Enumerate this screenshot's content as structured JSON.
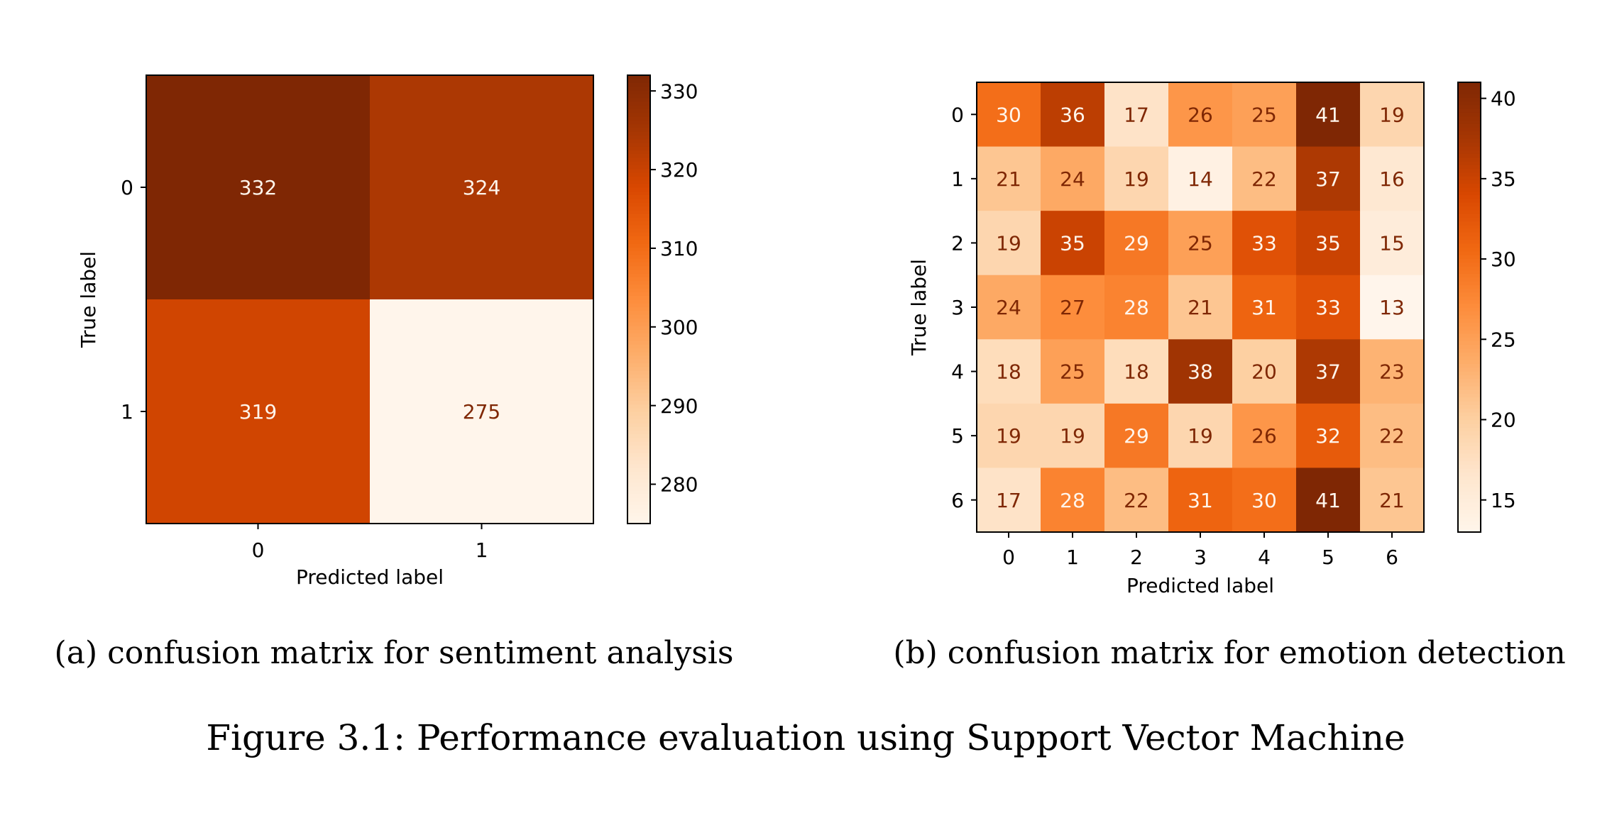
{
  "figure_caption": "Figure 3.1: Performance evaluation using Support Vector Machine",
  "subcaptions": {
    "a": "(a) confusion matrix for sentiment analysis",
    "b": "(b) confusion matrix for emotion detection"
  },
  "colormap": {
    "name": "Oranges",
    "stops": [
      "#fff5eb",
      "#fee6ce",
      "#fdd0a2",
      "#fdae6b",
      "#fd8d3c",
      "#f16913",
      "#d94801",
      "#a63603",
      "#7f2704"
    ]
  },
  "chart_data": [
    {
      "type": "heatmap",
      "title": "",
      "xlabel": "Predicted label",
      "ylabel": "True label",
      "x_categories": [
        "0",
        "1"
      ],
      "y_categories": [
        "0",
        "1"
      ],
      "values": [
        [
          332,
          324
        ],
        [
          319,
          275
        ]
      ],
      "color_range": [
        275,
        332
      ],
      "colorbar_ticks": [
        280,
        290,
        300,
        310,
        320,
        330
      ],
      "grid": false
    },
    {
      "type": "heatmap",
      "title": "",
      "xlabel": "Predicted label",
      "ylabel": "True label",
      "x_categories": [
        "0",
        "1",
        "2",
        "3",
        "4",
        "5",
        "6"
      ],
      "y_categories": [
        "0",
        "1",
        "2",
        "3",
        "4",
        "5",
        "6"
      ],
      "values": [
        [
          30,
          36,
          17,
          26,
          25,
          41,
          19
        ],
        [
          21,
          24,
          19,
          14,
          22,
          37,
          16
        ],
        [
          19,
          35,
          29,
          25,
          33,
          35,
          15
        ],
        [
          24,
          27,
          28,
          21,
          31,
          33,
          13
        ],
        [
          18,
          25,
          18,
          38,
          20,
          37,
          23
        ],
        [
          19,
          19,
          29,
          19,
          26,
          32,
          22
        ],
        [
          17,
          28,
          22,
          31,
          30,
          41,
          21
        ]
      ],
      "color_range": [
        13,
        41
      ],
      "colorbar_ticks": [
        15,
        20,
        25,
        30,
        35,
        40
      ],
      "grid": false
    }
  ]
}
